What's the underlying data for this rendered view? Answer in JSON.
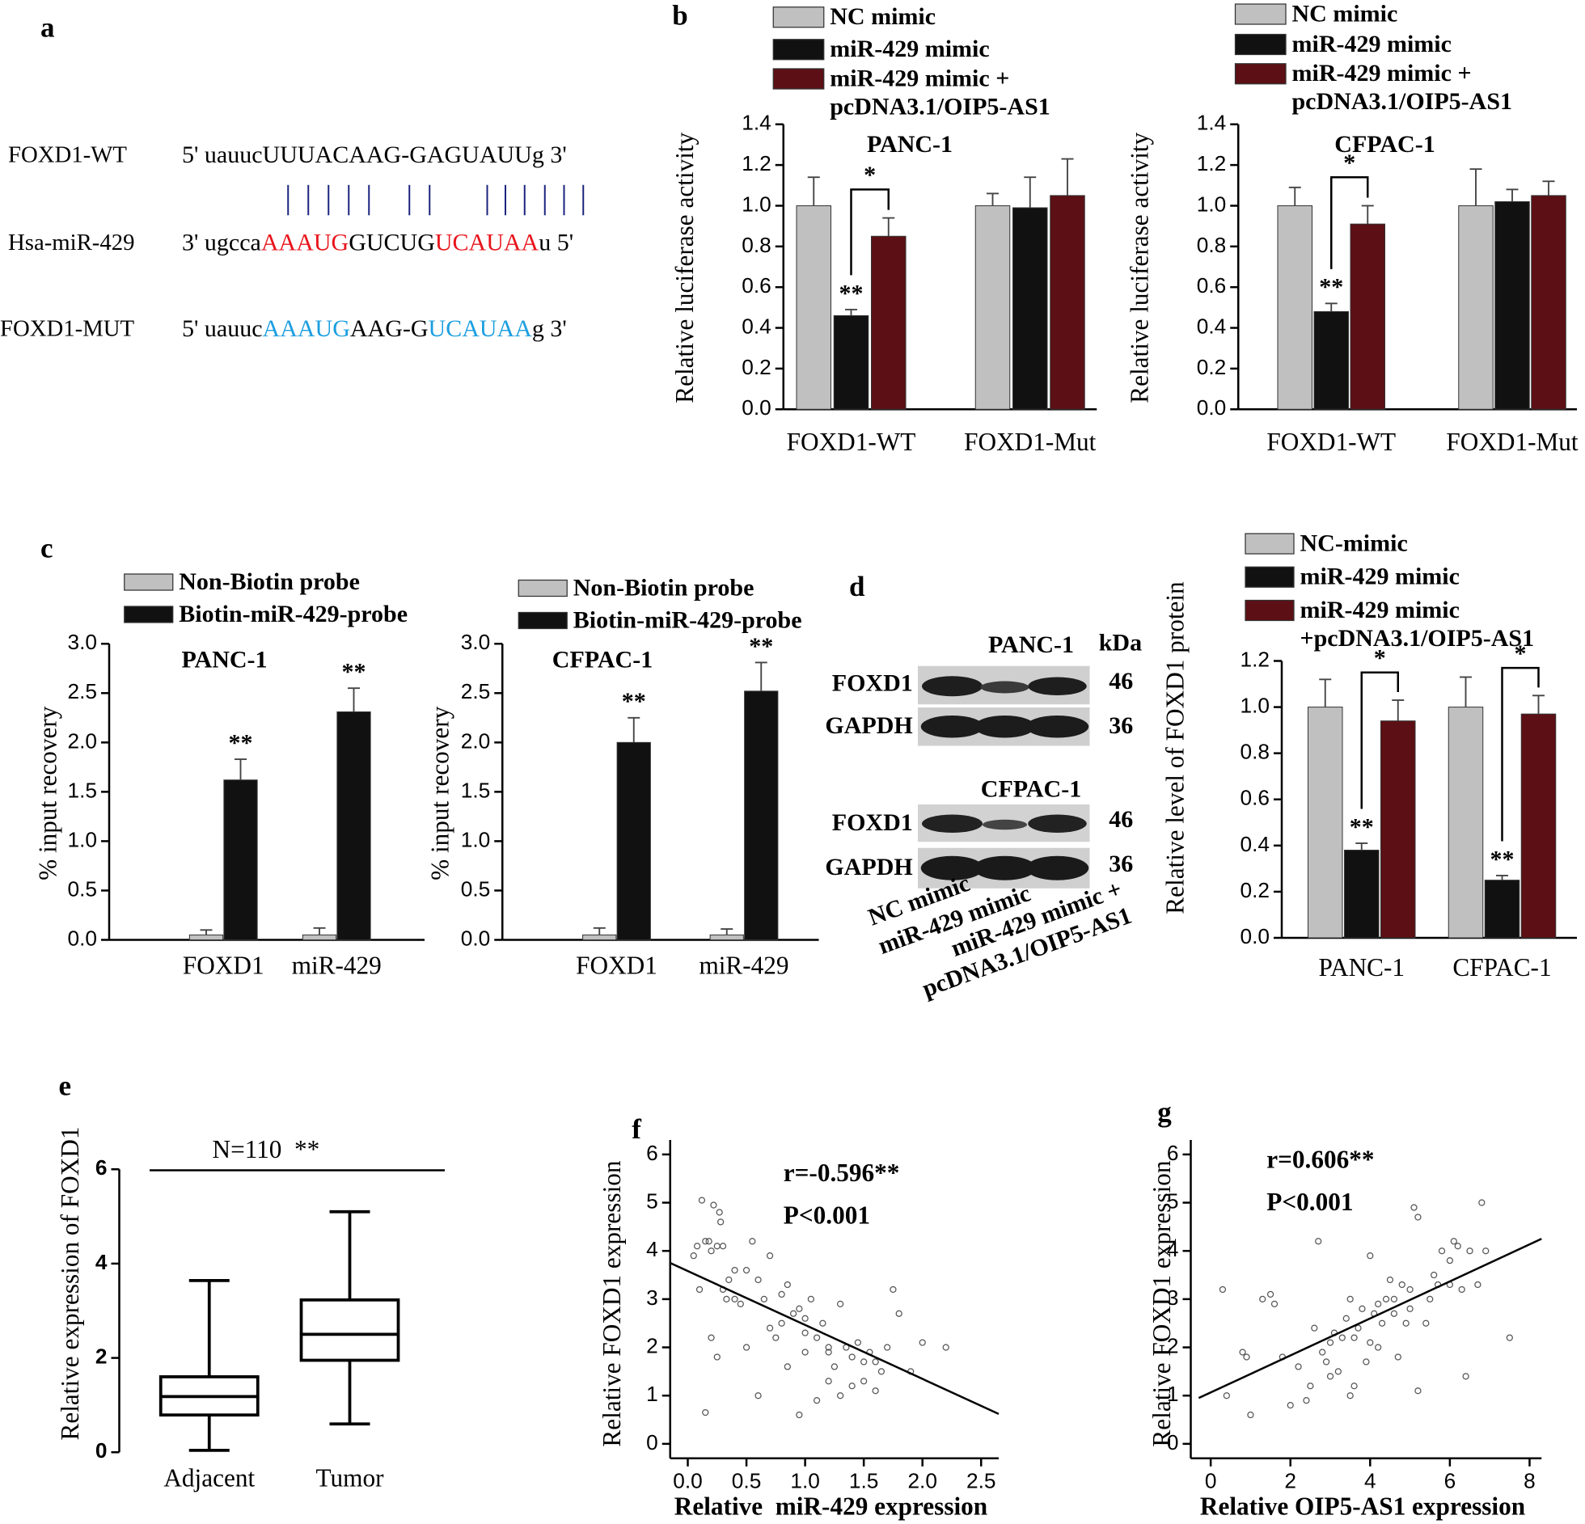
{
  "panel_labels": [
    "a",
    "b",
    "c",
    "d",
    "e",
    "f",
    "g"
  ],
  "panel_a": {
    "rows": [
      {
        "label": "FOXD1-WT",
        "segments": [
          {
            "text": "5' uauucUUUACAAG-GAGUAUUg 3'",
            "color": "#000000"
          }
        ]
      },
      {
        "label": "Hsa-miR-429",
        "segments": [
          {
            "text": "3' ugcca",
            "color": "#000000"
          },
          {
            "text": "AAAUG",
            "color": "#e8141b"
          },
          {
            "text": "GUCUG",
            "color": "#000000"
          },
          {
            "text": "UCAUAA",
            "color": "#e8141b"
          },
          {
            "text": "u 5'",
            "color": "#000000"
          }
        ]
      },
      {
        "label": "FOXD1-MUT",
        "segments": [
          {
            "text": "5' uauuc",
            "color": "#000000"
          },
          {
            "text": "AAAUG",
            "color": "#1b9ee0"
          },
          {
            "text": "AAG-G",
            "color": "#000000"
          },
          {
            "text": "UCAUAA",
            "color": "#1b9ee0"
          },
          {
            "text": "g 3'",
            "color": "#000000"
          }
        ]
      }
    ]
  },
  "blot": {
    "kda_header": "kDa",
    "panels": [
      {
        "title": "PANC-1",
        "rows": [
          {
            "label": "FOXD1",
            "kda": 46
          },
          {
            "label": "GAPDH",
            "kda": 36
          }
        ]
      },
      {
        "title": "CFPAC-1",
        "rows": [
          {
            "label": "FOXD1",
            "kda": 46
          },
          {
            "label": "GAPDH",
            "kda": 36
          }
        ]
      }
    ],
    "lanes": [
      "NC mimic",
      "miR-429 mimic",
      "miR-429 mimic + pcDNA3.1/OIP5-AS1"
    ]
  },
  "chart_data": [
    {
      "type": "bar",
      "title": "PANC-1",
      "ylabel": "Relative luciferase activity",
      "categories": [
        "FOXD1-WT",
        "FOXD1-Mut"
      ],
      "series": [
        {
          "name": "NC mimic",
          "color": "#c0c0c0",
          "values": [
            1.0,
            1.0
          ],
          "errors": [
            0.14,
            0.06
          ]
        },
        {
          "name": "miR-429 mimic",
          "color": "#111111",
          "values": [
            0.46,
            0.99
          ],
          "errors": [
            0.03,
            0.15
          ]
        },
        {
          "name": "miR-429 mimic + pcDNA3.1/OIP5-AS1",
          "color": "#5c0f14",
          "values": [
            0.85,
            1.05
          ],
          "errors": [
            0.09,
            0.18
          ]
        }
      ],
      "ylim": [
        0,
        1.4
      ],
      "yticks": [
        {
          "value": 0,
          "label": "0.0"
        },
        0.2,
        0.4,
        0.6,
        0.8,
        {
          "value": 1,
          "label": "1.0"
        },
        1.2,
        1.4
      ],
      "annotations": [
        {
          "text": "**",
          "category": 0,
          "series": 1
        }
      ],
      "brackets": [
        {
          "text": "*",
          "category": 0,
          "series": [
            1,
            2
          ]
        }
      ]
    },
    {
      "type": "bar",
      "title": "CFPAC-1",
      "ylabel": "Relative luciferase activity",
      "categories": [
        "FOXD1-WT",
        "FOXD1-Mut"
      ],
      "series": [
        {
          "name": "NC mimic",
          "color": "#c0c0c0",
          "values": [
            1.0,
            1.0
          ],
          "errors": [
            0.09,
            0.18
          ]
        },
        {
          "name": "miR-429 mimic",
          "color": "#111111",
          "values": [
            0.48,
            1.02
          ],
          "errors": [
            0.04,
            0.06
          ]
        },
        {
          "name": "miR-429 mimic + pcDNA3.1/OIP5-AS1",
          "color": "#5c0f14",
          "values": [
            0.91,
            1.05
          ],
          "errors": [
            0.09,
            0.07
          ]
        }
      ],
      "ylim": [
        0,
        1.4
      ],
      "yticks": [
        {
          "value": 0,
          "label": "0.0"
        },
        0.2,
        0.4,
        0.6,
        0.8,
        {
          "value": 1,
          "label": "1.0"
        },
        1.2,
        1.4
      ],
      "annotations": [
        {
          "text": "**",
          "category": 0,
          "series": 1
        }
      ],
      "brackets": [
        {
          "text": "*",
          "category": 0,
          "series": [
            1,
            2
          ]
        }
      ]
    },
    {
      "type": "bar",
      "title": "PANC-1",
      "ylabel": "% input recovery",
      "categories": [
        "FOXD1",
        "miR-429"
      ],
      "series": [
        {
          "name": "Non-Biotin probe",
          "color": "#c0c0c0",
          "values": [
            0.05,
            0.05
          ],
          "errors": [
            0.05,
            0.07
          ]
        },
        {
          "name": "Biotin-miR-429-probe",
          "color": "#111111",
          "values": [
            1.62,
            2.31
          ],
          "errors": [
            0.21,
            0.24
          ]
        }
      ],
      "ylim": [
        0,
        3
      ],
      "yticks": [
        {
          "value": 0,
          "label": "0.0"
        },
        0.5,
        {
          "value": 1,
          "label": "1.0"
        },
        1.5,
        {
          "value": 2,
          "label": "2.0"
        },
        2.5,
        {
          "value": 3,
          "label": "3.0"
        }
      ],
      "annotations": [
        {
          "text": "**",
          "category": 0,
          "series": 1
        },
        {
          "text": "**",
          "category": 1,
          "series": 1
        }
      ]
    },
    {
      "type": "bar",
      "title": "CFPAC-1",
      "ylabel": "% input recovery",
      "categories": [
        "FOXD1",
        "miR-429"
      ],
      "series": [
        {
          "name": "Non-Biotin probe",
          "color": "#c0c0c0",
          "values": [
            0.05,
            0.05
          ],
          "errors": [
            0.07,
            0.06
          ]
        },
        {
          "name": "Biotin-miR-429-probe",
          "color": "#111111",
          "values": [
            2.0,
            2.52
          ],
          "errors": [
            0.25,
            0.29
          ]
        }
      ],
      "ylim": [
        0,
        3
      ],
      "yticks": [
        {
          "value": 0,
          "label": "0.0"
        },
        0.5,
        {
          "value": 1,
          "label": "1.0"
        },
        1.5,
        {
          "value": 2,
          "label": "2.0"
        },
        2.5,
        {
          "value": 3,
          "label": "3.0"
        }
      ],
      "annotations": [
        {
          "text": "**",
          "category": 0,
          "series": 1
        },
        {
          "text": "**",
          "category": 1,
          "series": 1
        }
      ]
    },
    {
      "type": "bar",
      "ylabel": "Relative level of FOXD1 protein",
      "categories": [
        "PANC-1",
        "CFPAC-1"
      ],
      "series": [
        {
          "name": "NC-mimic",
          "color": "#c0c0c0",
          "values": [
            1.0,
            1.0
          ],
          "errors": [
            0.12,
            0.13
          ]
        },
        {
          "name": "miR-429 mimic",
          "color": "#111111",
          "values": [
            0.38,
            0.25
          ],
          "errors": [
            0.03,
            0.02
          ]
        },
        {
          "name": "miR-429 mimic +pcDNA3.1/OIP5-AS1",
          "color": "#5c0f14",
          "values": [
            0.94,
            0.97
          ],
          "errors": [
            0.09,
            0.08
          ]
        }
      ],
      "ylim": [
        0,
        1.2
      ],
      "yticks": [
        {
          "value": 0,
          "label": "0.0"
        },
        0.2,
        0.4,
        0.6,
        0.8,
        {
          "value": 1,
          "label": "1.0"
        },
        1.2
      ],
      "annotations": [
        {
          "text": "**",
          "category": 0,
          "series": 1
        },
        {
          "text": "**",
          "category": 1,
          "series": 1
        }
      ],
      "brackets": [
        {
          "text": "*",
          "category": 0,
          "series": [
            1,
            2
          ]
        },
        {
          "text": "*",
          "category": 1,
          "series": [
            1,
            2
          ]
        }
      ]
    },
    {
      "type": "box",
      "ylabel": "Relative expression of FOXD1",
      "annotation": "N=110  **",
      "categories": [
        "Adjacent",
        "Tumor"
      ],
      "boxes": [
        {
          "min": 0.04,
          "q1": 0.79,
          "median": 1.18,
          "q3": 1.6,
          "max": 3.64
        },
        {
          "min": 0.6,
          "q1": 1.95,
          "median": 2.5,
          "q3": 3.23,
          "max": 5.1
        }
      ],
      "ylim": [
        0,
        6
      ],
      "yticks": [
        0,
        2,
        4,
        6
      ]
    },
    {
      "type": "scatter",
      "xlabel": "Relative  miR-429 expression",
      "ylabel": "Relative FOXD1 expression",
      "annotations": [
        "r=-0.596**",
        "P<0.001"
      ],
      "x": [
        0.05,
        0.08,
        0.1,
        0.12,
        0.15,
        0.18,
        0.2,
        0.22,
        0.25,
        0.27,
        0.28,
        0.3,
        0.2,
        0.25,
        0.3,
        0.33,
        0.35,
        0.4,
        0.45,
        0.5,
        0.55,
        0.6,
        0.65,
        0.7,
        0.7,
        0.75,
        0.8,
        0.85,
        0.9,
        0.95,
        1.0,
        1.0,
        1.05,
        1.1,
        1.15,
        1.2,
        1.25,
        1.3,
        1.35,
        1.4,
        1.45,
        1.5,
        1.55,
        1.6,
        1.65,
        1.7,
        1.75,
        1.8,
        1.9,
        2.0,
        2.2,
        0.5,
        0.6,
        0.15,
        0.95,
        1.1,
        1.2,
        1.4,
        1.5,
        0.4,
        0.8,
        1.0,
        1.2,
        0.85,
        1.3,
        1.6
      ],
      "y": [
        3.9,
        4.1,
        3.2,
        5.05,
        4.2,
        4.2,
        4.0,
        4.95,
        4.1,
        4.8,
        4.6,
        4.1,
        2.2,
        1.8,
        3.2,
        3.0,
        3.4,
        3.6,
        2.9,
        3.6,
        4.2,
        3.4,
        3.0,
        3.9,
        2.4,
        2.2,
        3.1,
        3.3,
        2.7,
        2.8,
        2.6,
        1.9,
        3.0,
        2.2,
        2.5,
        2.0,
        1.6,
        2.9,
        2.0,
        1.8,
        2.1,
        1.7,
        1.9,
        1.7,
        1.5,
        2.0,
        3.2,
        2.7,
        1.5,
        2.1,
        2.0,
        2.0,
        1.0,
        0.65,
        0.6,
        0.9,
        1.3,
        1.2,
        1.3,
        3.0,
        2.5,
        2.3,
        1.9,
        1.6,
        1.0,
        1.1
      ],
      "fit": {
        "x": [
          -0.15,
          2.65
        ],
        "y": [
          3.75,
          0.62
        ]
      },
      "xlim": [
        -0.15,
        2.65
      ],
      "xticks": [
        {
          "value": 0,
          "label": "0.0"
        },
        0.5,
        {
          "value": 1,
          "label": "1.0"
        },
        1.5,
        {
          "value": 2,
          "label": "2.0"
        },
        2.5
      ],
      "ylim": [
        -0.3,
        6.3
      ],
      "yticks": [
        0,
        1,
        2,
        3,
        4,
        5,
        6
      ]
    },
    {
      "type": "scatter",
      "xlabel": "Relative OIP5-AS1 expression",
      "ylabel": "Relative FOXD1 expression",
      "annotations": [
        "r=0.606**",
        "P<0.001"
      ],
      "x": [
        0.3,
        0.4,
        0.8,
        0.9,
        1.0,
        1.3,
        1.5,
        1.6,
        1.8,
        2.0,
        2.2,
        2.4,
        2.5,
        2.6,
        2.7,
        2.8,
        2.9,
        3.0,
        3.1,
        3.2,
        3.3,
        3.4,
        3.5,
        3.5,
        3.6,
        3.7,
        3.8,
        3.9,
        4.0,
        4.0,
        4.1,
        4.2,
        4.3,
        4.4,
        4.5,
        4.6,
        4.7,
        4.8,
        4.9,
        5.0,
        5.1,
        5.2,
        5.2,
        5.4,
        5.6,
        5.7,
        5.8,
        6.0,
        6.1,
        6.2,
        6.3,
        6.4,
        6.5,
        6.7,
        6.8,
        6.9,
        7.5,
        3.0,
        3.6,
        4.2,
        4.6,
        5.0,
        5.5,
        6.0
      ],
      "y": [
        3.2,
        1.0,
        1.9,
        1.8,
        0.6,
        3.0,
        3.1,
        2.9,
        1.8,
        0.8,
        1.6,
        0.9,
        1.2,
        2.4,
        4.2,
        1.9,
        1.7,
        2.1,
        2.3,
        1.5,
        2.2,
        2.6,
        3.0,
        1.0,
        2.2,
        2.4,
        2.8,
        1.7,
        2.1,
        3.9,
        2.7,
        2.9,
        2.5,
        3.0,
        3.4,
        2.7,
        1.8,
        3.3,
        2.5,
        3.2,
        4.9,
        4.7,
        1.1,
        2.5,
        3.5,
        3.3,
        4.0,
        3.8,
        4.2,
        4.1,
        3.2,
        1.4,
        4.0,
        3.3,
        5.0,
        4.0,
        2.2,
        1.4,
        1.2,
        2.0,
        3.0,
        2.8,
        3.0,
        3.3
      ],
      "fit": {
        "x": [
          -0.3,
          8.3
        ],
        "y": [
          0.95,
          4.25
        ]
      },
      "xlim": [
        -0.5,
        8.3
      ],
      "xticks": [
        0,
        2,
        4,
        6,
        8
      ],
      "ylim": [
        -0.3,
        6.3
      ],
      "yticks": [
        0,
        1,
        2,
        3,
        4,
        5,
        6
      ]
    }
  ]
}
